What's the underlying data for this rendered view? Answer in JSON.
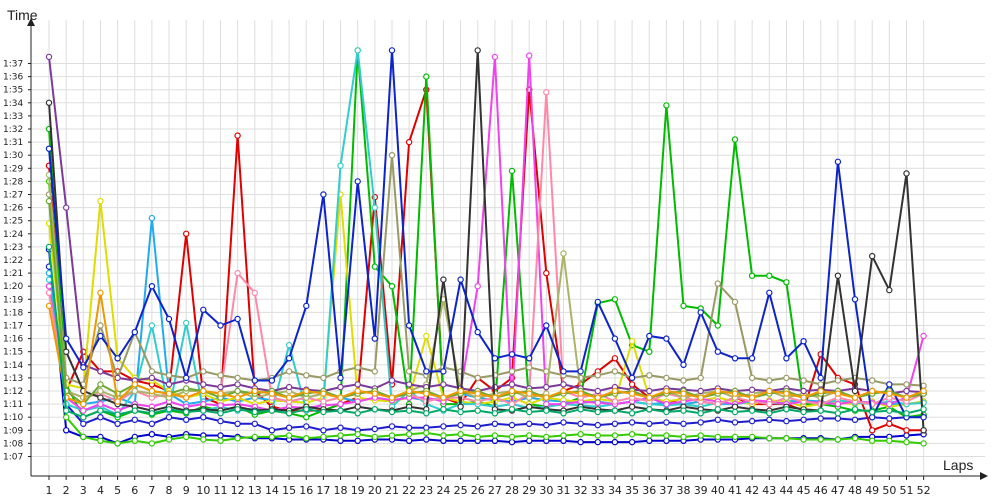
{
  "chart_data": {
    "type": "line",
    "title": "",
    "xlabel": "Laps",
    "ylabel": "Time",
    "x": [
      1,
      2,
      3,
      4,
      5,
      6,
      7,
      8,
      9,
      10,
      11,
      12,
      13,
      14,
      15,
      16,
      17,
      18,
      19,
      20,
      21,
      22,
      23,
      24,
      25,
      26,
      27,
      28,
      29,
      30,
      31,
      32,
      33,
      34,
      35,
      36,
      37,
      38,
      39,
      40,
      41,
      42,
      43,
      44,
      45,
      46,
      47,
      48,
      49,
      50,
      51,
      52
    ],
    "x_tick_labels": [
      "1",
      "2",
      "3",
      "4",
      "5",
      "6",
      "7",
      "8",
      "9",
      "10",
      "11",
      "12",
      "13",
      "14",
      "15",
      "16",
      "17",
      "18",
      "19",
      "20",
      "21",
      "22",
      "23",
      "24",
      "25",
      "26",
      "27",
      "28",
      "29",
      "30",
      "31",
      "32",
      "33",
      "34",
      "35",
      "36",
      "37",
      "38",
      "39",
      "40",
      "41",
      "42",
      "43",
      "44",
      "45",
      "46",
      "47",
      "48",
      "49",
      "50",
      "51",
      "52"
    ],
    "y_tick_values_s": [
      67,
      68,
      69,
      70,
      71,
      72,
      73,
      74,
      75,
      76,
      77,
      78,
      79,
      80,
      81,
      82,
      83,
      84,
      85,
      86,
      87,
      88,
      89,
      90,
      91,
      92,
      93,
      94,
      95,
      96,
      97
    ],
    "y_tick_labels": [
      "1:07",
      "1:08",
      "1:09",
      "1:10",
      "1:11",
      "1:12",
      "1:13",
      "1:14",
      "1:15",
      "1:16",
      "1:17",
      "1:18",
      "1:19",
      "1:20",
      "1:21",
      "1:22",
      "1:23",
      "1:24",
      "1:25",
      "1:26",
      "1:27",
      "1:28",
      "1:29",
      "1:30",
      "1:31",
      "1:32",
      "1:33",
      "1:34",
      "1:35",
      "1:36",
      "1:37"
    ],
    "ylim_s": [
      66.2,
      98.2
    ],
    "grid": true,
    "legend": "none",
    "series": [
      {
        "color": "#0000cc",
        "values": [
          82.8,
          69.0,
          68.5,
          68.5,
          68.0,
          68.5,
          68.7,
          68.5,
          68.7,
          68.6,
          68.6,
          68.5,
          68.4,
          68.4,
          68.3,
          68.3,
          68.3,
          68.2,
          68.2,
          68.3,
          68.3,
          68.2,
          68.3,
          68.2,
          68.2,
          68.2,
          68.2,
          68.1,
          68.2,
          68.2,
          68.2,
          68.1,
          68.1,
          68.1,
          68.1,
          68.2,
          68.2,
          68.2,
          68.3,
          68.3,
          68.3,
          68.4,
          68.4,
          68.4,
          68.4,
          68.4,
          68.3,
          68.5,
          68.5,
          68.5,
          68.6,
          68.7
        ]
      },
      {
        "color": "#1e1ecc",
        "values": [
          81.5,
          71.0,
          69.5,
          70.0,
          69.5,
          69.8,
          69.5,
          70.0,
          69.8,
          70.0,
          69.7,
          69.5,
          69.5,
          69.0,
          69.2,
          69.3,
          69.0,
          69.2,
          69.0,
          69.1,
          69.3,
          69.2,
          69.2,
          69.3,
          69.4,
          69.3,
          69.5,
          69.4,
          69.5,
          69.4,
          69.6,
          69.5,
          69.4,
          69.5,
          69.6,
          69.5,
          69.6,
          69.5,
          69.6,
          69.8,
          69.6,
          69.7,
          69.8,
          69.7,
          69.8,
          69.9,
          69.9,
          69.8,
          70.0,
          69.9,
          70.0,
          70.1
        ]
      },
      {
        "color": "#e00000",
        "values": [
          89.2,
          72.0,
          75.0,
          73.5,
          73.5,
          72.8,
          72.5,
          72.0,
          84.0,
          71.5,
          71.0,
          91.5,
          72.0,
          70.8,
          70.5,
          70.5,
          70.5,
          71.0,
          71.5,
          86.8,
          72.5,
          91.0,
          95.0,
          71.5,
          71.0,
          73.0,
          72.0,
          73.0,
          95.0,
          81.0,
          72.0,
          72.5,
          73.5,
          74.5,
          72.5,
          71.5,
          71.0,
          71.5,
          71.2,
          71.0,
          71.5,
          71.0,
          71.0,
          71.0,
          70.5,
          74.8,
          73.0,
          72.5,
          69.0,
          69.5,
          69.0,
          69.0
        ]
      },
      {
        "color": "#00bb00",
        "values": [
          92.0,
          72.5,
          70.0,
          70.5,
          70.0,
          70.5,
          70.2,
          70.5,
          70.3,
          70.8,
          70.5,
          70.8,
          70.2,
          70.5,
          70.3,
          70.0,
          70.5,
          71.0,
          98.0,
          81.5,
          80.0,
          71.0,
          96.0,
          71.0,
          71.0,
          71.2,
          70.8,
          88.8,
          71.0,
          70.8,
          71.0,
          71.5,
          78.7,
          79.0,
          75.5,
          75.0,
          93.8,
          78.5,
          78.3,
          77.0,
          91.2,
          80.8,
          80.8,
          80.3,
          71.0,
          71.0,
          70.8,
          70.5,
          70.5,
          70.8,
          70.0,
          70.2
        ]
      },
      {
        "color": "#33cc00",
        "values": [
          88.0,
          70.0,
          68.5,
          68.2,
          68.0,
          68.2,
          68.0,
          68.3,
          68.5,
          68.3,
          68.2,
          68.4,
          68.5,
          68.5,
          68.6,
          68.4,
          68.5,
          68.6,
          68.7,
          68.5,
          68.6,
          68.7,
          68.8,
          68.6,
          68.7,
          68.5,
          68.6,
          68.5,
          68.6,
          68.5,
          68.6,
          68.7,
          68.6,
          68.6,
          68.7,
          68.6,
          68.6,
          68.5,
          68.6,
          68.5,
          68.5,
          68.5,
          68.4,
          68.4,
          68.3,
          68.3,
          68.3,
          68.4,
          68.2,
          68.2,
          68.1,
          68.0
        ]
      },
      {
        "color": "#22aaee",
        "values": [
          81.0,
          71.5,
          71.0,
          71.2,
          71.5,
          71.0,
          85.2,
          71.8,
          71.0,
          71.2,
          71.5,
          71.2,
          71.5,
          71.3,
          71.2,
          71.5,
          71.8,
          71.5,
          71.2,
          71.5,
          71.3,
          71.5,
          71.3,
          71.5,
          71.8,
          71.5,
          71.3,
          71.2,
          71.5,
          71.3,
          71.2,
          71.1,
          71.2,
          71.0,
          71.2,
          71.0,
          71.1,
          71.0,
          71.2,
          71.0,
          71.0,
          71.2,
          71.1,
          71.2,
          71.3,
          71.2,
          71.0,
          71.2,
          71.1,
          71.0,
          71.0,
          71.2
        ]
      },
      {
        "color": "#dddd00",
        "values": [
          84.8,
          72.5,
          72.2,
          86.5,
          74.5,
          73.0,
          72.8,
          72.0,
          71.5,
          71.8,
          71.2,
          71.5,
          71.0,
          71.3,
          71.2,
          71.1,
          71.5,
          87.0,
          71.5,
          71.3,
          71.2,
          71.5,
          76.2,
          71.5,
          71.2,
          71.0,
          71.2,
          71.5,
          71.0,
          71.5,
          71.3,
          71.2,
          71.4,
          71.2,
          75.8,
          71.5,
          71.2,
          71.4,
          71.3,
          71.5,
          71.2,
          71.0,
          71.3,
          71.2,
          70.8,
          71.0,
          71.1,
          71.0,
          71.2,
          70.8,
          71.0,
          71.2
        ]
      },
      {
        "color": "#33cccc",
        "values": [
          80.5,
          71.0,
          70.5,
          70.8,
          70.2,
          72.0,
          77.0,
          70.5,
          77.2,
          70.5,
          70.8,
          70.5,
          70.7,
          70.5,
          75.5,
          70.5,
          71.0,
          89.2,
          98.0,
          86.0,
          70.8,
          72.0,
          71.0,
          70.5,
          71.0,
          71.0,
          70.8,
          71.0,
          70.7,
          70.8,
          71.0,
          70.9,
          70.8,
          71.0,
          71.2,
          71.0,
          70.9,
          71.0,
          70.8,
          71.1,
          71.0,
          71.2,
          71.1,
          71.0,
          71.2,
          71.0,
          71.3,
          71.1,
          71.0,
          71.2,
          71.0,
          71.1
        ]
      },
      {
        "color": "#ee44ee",
        "values": [
          80.0,
          71.5,
          70.5,
          71.0,
          70.5,
          71.0,
          70.8,
          71.2,
          70.8,
          71.0,
          70.9,
          71.0,
          70.8,
          70.5,
          70.8,
          70.7,
          70.9,
          71.0,
          71.2,
          71.5,
          71.3,
          71.5,
          71.5,
          71.2,
          72.0,
          80.0,
          97.5,
          71.0,
          97.6,
          71.0,
          71.0,
          71.2,
          71.1,
          71.0,
          71.2,
          71.5,
          71.0,
          71.2,
          71.4,
          71.2,
          71.0,
          71.3,
          71.2,
          71.0,
          71.2,
          71.1,
          71.0,
          71.2,
          71.1,
          71.0,
          71.5,
          76.2
        ]
      },
      {
        "color": "#ff88aa",
        "values": [
          79.5,
          72.0,
          71.5,
          71.8,
          71.2,
          72.0,
          71.5,
          71.8,
          71.5,
          72.0,
          71.8,
          81.0,
          79.5,
          71.5,
          71.2,
          71.5,
          71.2,
          71.5,
          71.8,
          72.0,
          71.5,
          71.8,
          71.2,
          71.5,
          71.5,
          71.2,
          71.5,
          71.0,
          71.8,
          94.8,
          72.0,
          71.5,
          71.8,
          71.2,
          71.5,
          71.2,
          71.8,
          71.5,
          71.2,
          71.0,
          71.5,
          71.2,
          71.0,
          71.5,
          71.2,
          71.0,
          71.5,
          71.2,
          71.0,
          71.5,
          71.2,
          71.8
        ]
      },
      {
        "color": "#999966",
        "values": [
          87.0,
          73.0,
          72.5,
          77.0,
          73.0,
          76.5,
          73.5,
          73.2,
          73.0,
          73.5,
          73.2,
          73.0,
          72.8,
          73.0,
          73.5,
          73.2,
          73.0,
          73.5,
          73.8,
          73.5,
          90.0,
          73.5,
          73.2,
          73.8,
          73.5,
          73.0,
          73.2,
          73.5,
          73.8,
          73.5,
          73.2,
          73.0,
          73.2,
          73.5,
          73.0,
          73.2,
          73.0,
          72.8,
          73.0,
          80.2,
          78.8,
          73.0,
          72.8,
          73.0,
          72.8,
          72.5,
          72.8,
          73.0,
          72.8,
          72.5,
          72.5,
          72.4
        ]
      },
      {
        "color": "#aab366",
        "values": [
          88.5,
          72.0,
          71.5,
          72.0,
          71.5,
          72.0,
          71.8,
          71.5,
          72.0,
          72.0,
          71.8,
          72.0,
          71.5,
          71.8,
          72.0,
          71.5,
          71.8,
          71.5,
          72.0,
          71.8,
          71.5,
          72.0,
          72.5,
          79.0,
          72.0,
          71.5,
          71.8,
          72.0,
          71.5,
          71.8,
          82.5,
          72.0,
          71.5,
          72.0,
          71.8,
          71.5,
          72.0,
          71.5,
          71.8,
          72.0,
          71.5,
          71.8,
          72.0,
          71.5,
          71.8,
          71.5,
          72.0,
          71.5,
          71.8,
          72.0,
          71.5,
          71.8
        ]
      },
      {
        "color": "#7a3a9a",
        "values": [
          97.5,
          86.0,
          74.0,
          73.5,
          73.0,
          72.8,
          73.0,
          72.5,
          72.8,
          72.5,
          72.3,
          72.5,
          72.2,
          72.0,
          72.3,
          72.1,
          72.0,
          72.3,
          72.5,
          72.2,
          72.8,
          72.5,
          72.3,
          72.5,
          72.2,
          72.0,
          72.3,
          72.5,
          72.2,
          72.3,
          72.5,
          72.2,
          72.0,
          72.3,
          72.1,
          72.0,
          72.2,
          72.1,
          72.0,
          72.2,
          72.0,
          72.1,
          72.0,
          72.2,
          72.0,
          72.1,
          72.0,
          72.2,
          72.0,
          71.8,
          72.0,
          71.9
        ]
      },
      {
        "color": "#333333",
        "values": [
          94.0,
          75.0,
          72.0,
          71.5,
          71.0,
          70.8,
          70.5,
          70.8,
          70.5,
          70.6,
          70.5,
          70.8,
          70.5,
          70.6,
          70.5,
          70.8,
          70.6,
          70.5,
          70.8,
          70.6,
          70.5,
          70.8,
          70.6,
          80.5,
          70.8,
          98.0,
          70.6,
          70.5,
          70.8,
          70.6,
          70.5,
          70.8,
          70.6,
          70.5,
          70.8,
          70.6,
          70.5,
          70.8,
          70.6,
          70.5,
          70.8,
          70.6,
          70.5,
          70.8,
          70.6,
          70.5,
          80.8,
          72.0,
          82.3,
          79.7,
          88.6,
          69.0
        ]
      },
      {
        "color": "#0d24c8",
        "values": [
          90.5,
          76.0,
          73.8,
          76.2,
          74.5,
          76.5,
          80.0,
          77.5,
          73.0,
          78.2,
          77.0,
          77.5,
          72.8,
          72.8,
          74.5,
          78.5,
          87.0,
          73.0,
          88.0,
          76.0,
          98.0,
          77.0,
          73.5,
          73.5,
          80.5,
          76.5,
          74.5,
          74.8,
          74.5,
          77.0,
          73.5,
          73.5,
          78.8,
          76.0,
          73.0,
          76.2,
          76.0,
          74.0,
          78.0,
          75.0,
          74.5,
          74.5,
          79.5,
          74.5,
          75.8,
          73.0,
          89.5,
          79.0,
          70.0,
          72.5,
          70.0,
          70.0
        ]
      },
      {
        "color": "#6da832",
        "values": [
          86.5,
          72.0,
          71.0,
          72.5,
          71.8,
          72.5,
          72.0,
          71.8,
          72.2,
          72.0,
          71.5,
          72.0,
          71.8,
          72.0,
          71.5,
          71.8,
          72.0,
          71.5,
          71.8,
          72.0,
          71.5,
          71.8,
          72.0,
          71.5,
          71.8,
          72.0,
          71.5,
          71.8,
          72.0,
          71.5,
          71.8,
          72.0,
          71.5,
          71.8,
          72.0,
          71.5,
          71.8,
          72.0,
          71.5,
          71.8,
          72.0,
          71.5,
          71.8,
          72.0,
          71.5,
          71.8,
          72.0,
          71.5,
          71.8,
          72.0,
          71.5,
          71.8
        ]
      },
      {
        "color": "#ee9900",
        "values": [
          78.5,
          71.5,
          71.0,
          79.5,
          71.2,
          72.5,
          72.0,
          71.8,
          71.5,
          72.0,
          71.8,
          71.5,
          72.0,
          71.8,
          71.5,
          72.0,
          71.8,
          71.5,
          72.0,
          71.8,
          71.5,
          72.0,
          71.8,
          71.5,
          72.0,
          71.8,
          71.5,
          72.0,
          71.8,
          71.5,
          72.0,
          71.8,
          71.5,
          72.0,
          71.8,
          71.5,
          72.0,
          71.8,
          71.5,
          72.0,
          71.8,
          71.5,
          72.0,
          71.8,
          71.5,
          72.0,
          71.8,
          71.5,
          72.0,
          71.8,
          71.5,
          72.0
        ]
      },
      {
        "color": "#00aa66",
        "values": [
          83.0,
          70.5,
          70.0,
          70.5,
          70.2,
          70.5,
          70.3,
          70.6,
          70.4,
          70.5,
          70.3,
          70.6,
          70.4,
          70.5,
          70.3,
          70.6,
          70.4,
          70.5,
          70.3,
          70.6,
          70.4,
          70.5,
          70.3,
          70.6,
          70.4,
          70.5,
          70.3,
          70.6,
          70.4,
          70.5,
          70.3,
          70.6,
          70.4,
          70.5,
          70.3,
          70.6,
          70.4,
          70.5,
          70.3,
          70.6,
          70.4,
          70.5,
          70.3,
          70.6,
          70.4,
          70.5,
          70.3,
          70.6,
          70.4,
          70.5,
          70.3,
          70.6
        ]
      }
    ]
  }
}
